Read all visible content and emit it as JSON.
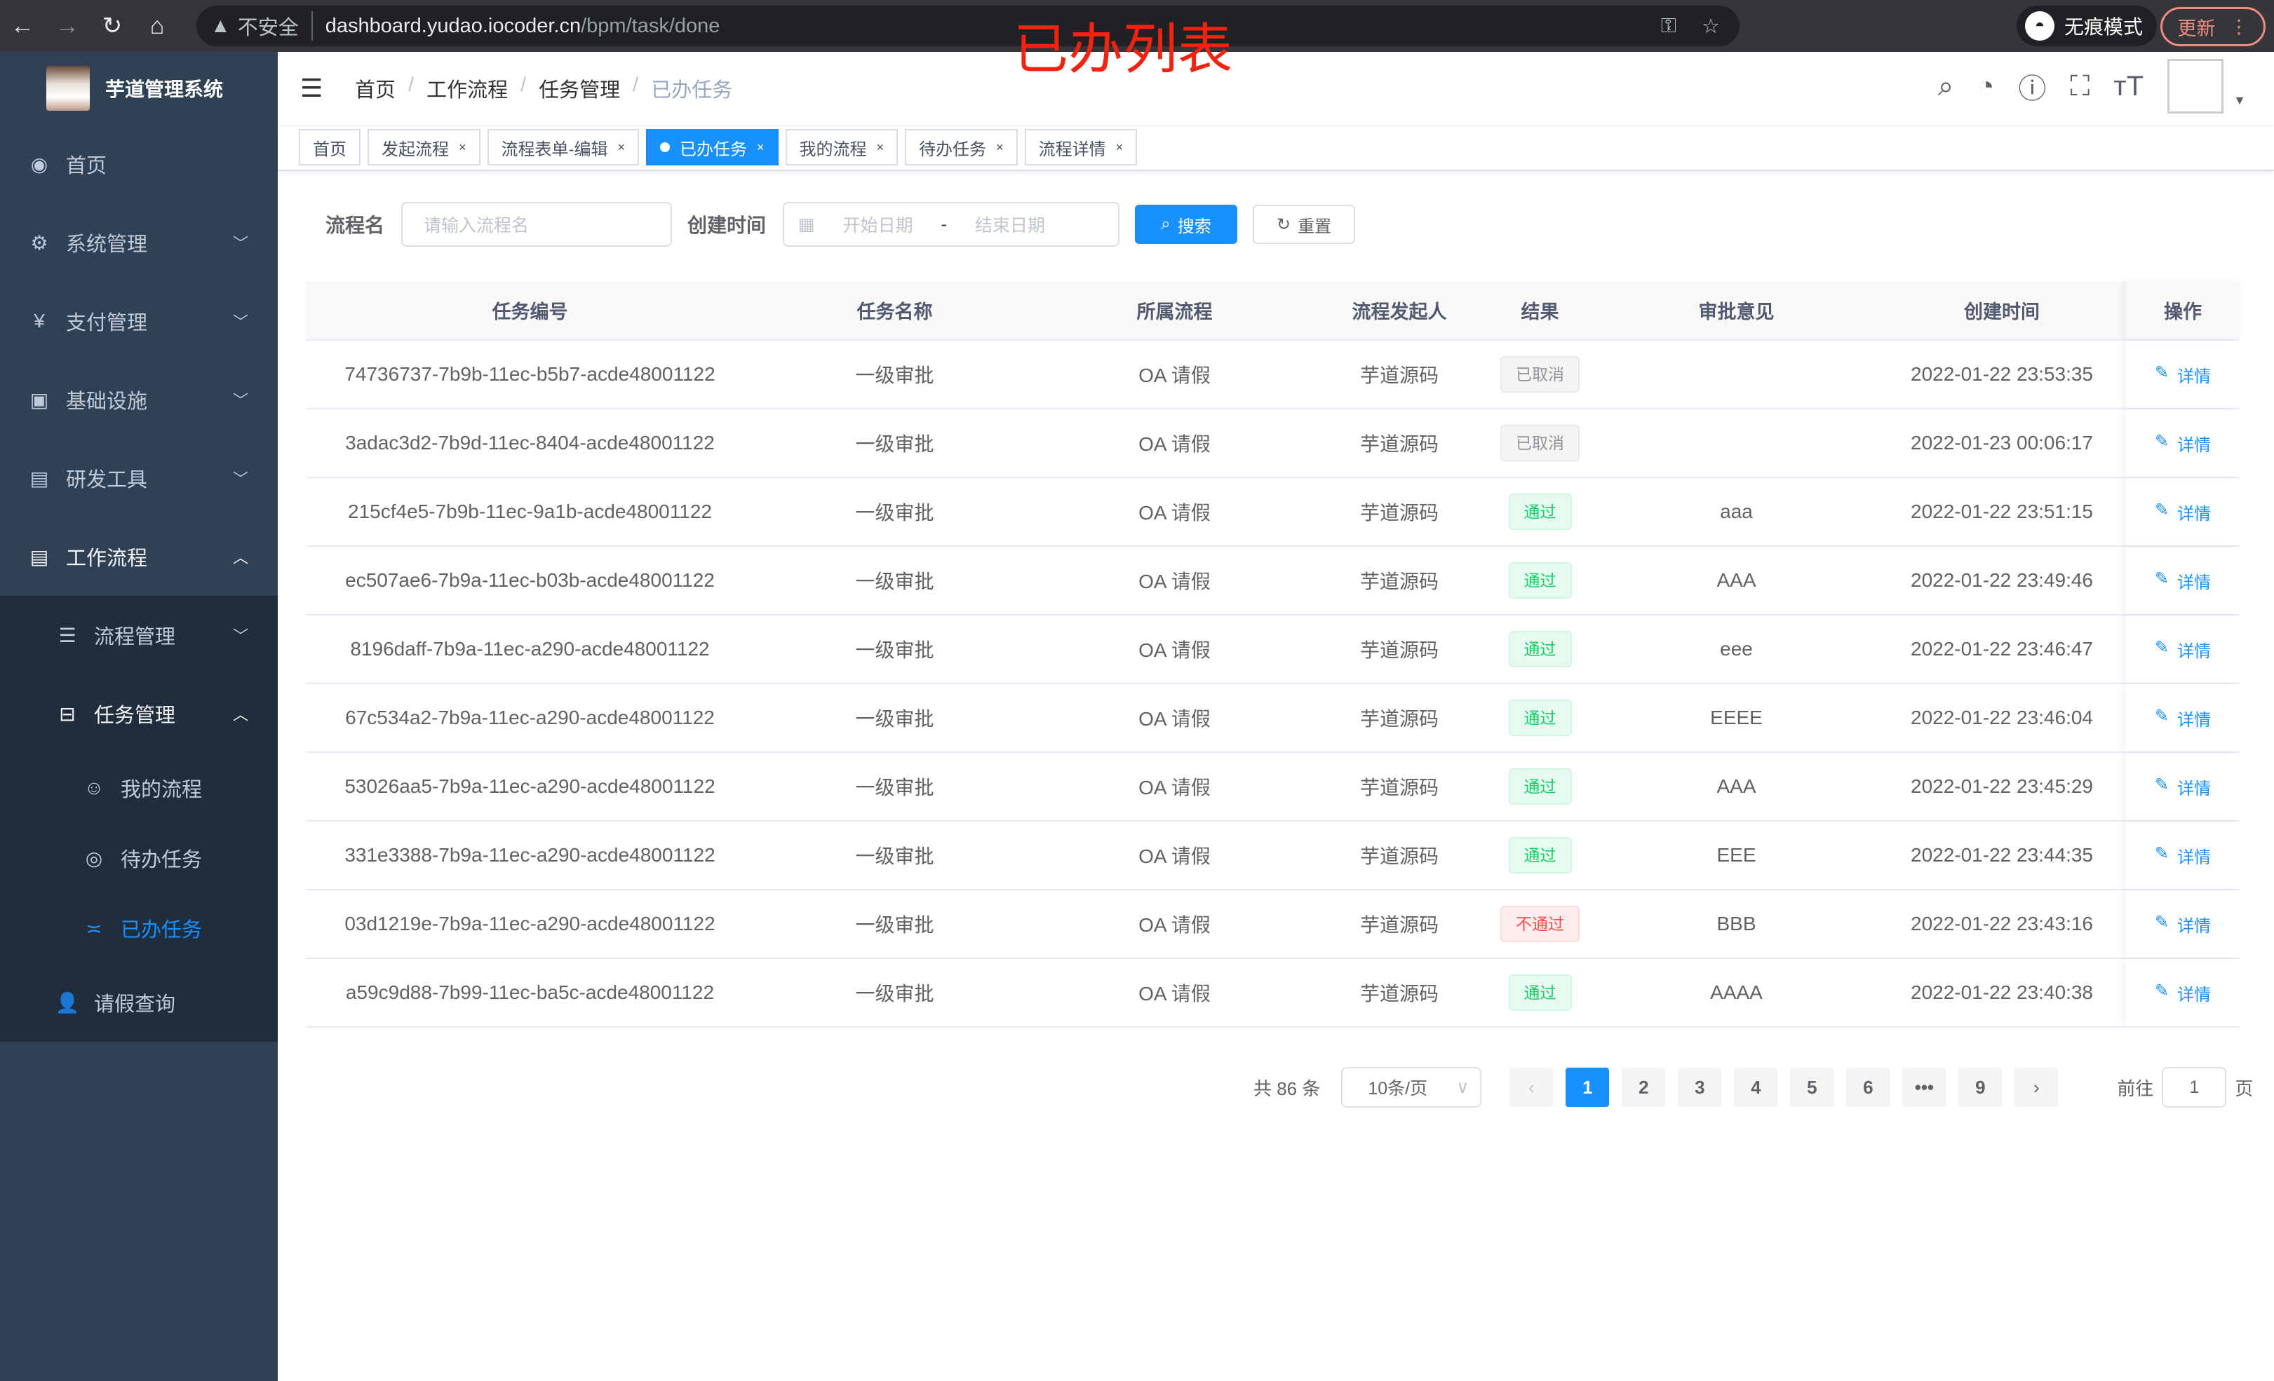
{
  "browser": {
    "url_host": "dashboard.yudao.iocoder.cn",
    "url_path": "/bpm/task/done",
    "insecure": "不安全",
    "incognito": "无痕模式",
    "update": "更新"
  },
  "overlay_title": "已办列表",
  "app": {
    "name": "芋道管理系统"
  },
  "sidebar": {
    "items": [
      {
        "label": "首页",
        "icon": "dashboard-icon"
      },
      {
        "label": "系统管理",
        "icon": "gear-icon"
      },
      {
        "label": "支付管理",
        "icon": "yen-icon"
      },
      {
        "label": "基础设施",
        "icon": "monitor-icon"
      },
      {
        "label": "研发工具",
        "icon": "toolbox-icon"
      },
      {
        "label": "工作流程",
        "icon": "toolbox-icon"
      }
    ],
    "workflow_children": [
      {
        "label": "流程管理"
      },
      {
        "label": "任务管理"
      },
      {
        "label": "请假查询"
      }
    ],
    "task_children": [
      {
        "label": "我的流程"
      },
      {
        "label": "待办任务"
      },
      {
        "label": "已办任务"
      }
    ]
  },
  "breadcrumb": [
    "首页",
    "工作流程",
    "任务管理",
    "已办任务"
  ],
  "tags": [
    {
      "label": "首页"
    },
    {
      "label": "发起流程"
    },
    {
      "label": "流程表单-编辑"
    },
    {
      "label": "已办任务",
      "active": true
    },
    {
      "label": "我的流程"
    },
    {
      "label": "待办任务"
    },
    {
      "label": "流程详情"
    }
  ],
  "filter": {
    "name_label": "流程名",
    "name_placeholder": "请输入流程名",
    "time_label": "创建时间",
    "start_placeholder": "开始日期",
    "sep": "-",
    "end_placeholder": "结束日期",
    "search": "搜索",
    "reset": "重置"
  },
  "table": {
    "headers": [
      "任务编号",
      "任务名称",
      "所属流程",
      "流程发起人",
      "结果",
      "审批意见",
      "创建时间",
      "操作"
    ],
    "rows": [
      {
        "id": "74736737-7b9b-11ec-b5b7-acde48001122",
        "name": "一级审批",
        "flow": "OA 请假",
        "initiator": "芋道源码",
        "result": "已取消",
        "status": "cancel",
        "comment": "",
        "time": "2022-01-22 23:53:35",
        "action": "详情"
      },
      {
        "id": "3adac3d2-7b9d-11ec-8404-acde48001122",
        "name": "一级审批",
        "flow": "OA 请假",
        "initiator": "芋道源码",
        "result": "已取消",
        "status": "cancel",
        "comment": "",
        "time": "2022-01-23 00:06:17",
        "action": "详情"
      },
      {
        "id": "215cf4e5-7b9b-11ec-9a1b-acde48001122",
        "name": "一级审批",
        "flow": "OA 请假",
        "initiator": "芋道源码",
        "result": "通过",
        "status": "pass",
        "comment": "aaa",
        "time": "2022-01-22 23:51:15",
        "action": "详情"
      },
      {
        "id": "ec507ae6-7b9a-11ec-b03b-acde48001122",
        "name": "一级审批",
        "flow": "OA 请假",
        "initiator": "芋道源码",
        "result": "通过",
        "status": "pass",
        "comment": "AAA",
        "time": "2022-01-22 23:49:46",
        "action": "详情"
      },
      {
        "id": "8196daff-7b9a-11ec-a290-acde48001122",
        "name": "一级审批",
        "flow": "OA 请假",
        "initiator": "芋道源码",
        "result": "通过",
        "status": "pass",
        "comment": "eee",
        "time": "2022-01-22 23:46:47",
        "action": "详情"
      },
      {
        "id": "67c534a2-7b9a-11ec-a290-acde48001122",
        "name": "一级审批",
        "flow": "OA 请假",
        "initiator": "芋道源码",
        "result": "通过",
        "status": "pass",
        "comment": "EEEE",
        "time": "2022-01-22 23:46:04",
        "action": "详情"
      },
      {
        "id": "53026aa5-7b9a-11ec-a290-acde48001122",
        "name": "一级审批",
        "flow": "OA 请假",
        "initiator": "芋道源码",
        "result": "通过",
        "status": "pass",
        "comment": "AAA",
        "time": "2022-01-22 23:45:29",
        "action": "详情"
      },
      {
        "id": "331e3388-7b9a-11ec-a290-acde48001122",
        "name": "一级审批",
        "flow": "OA 请假",
        "initiator": "芋道源码",
        "result": "通过",
        "status": "pass",
        "comment": "EEE",
        "time": "2022-01-22 23:44:35",
        "action": "详情"
      },
      {
        "id": "03d1219e-7b9a-11ec-a290-acde48001122",
        "name": "一级审批",
        "flow": "OA 请假",
        "initiator": "芋道源码",
        "result": "不通过",
        "status": "fail",
        "comment": "BBB",
        "time": "2022-01-22 23:43:16",
        "action": "详情"
      },
      {
        "id": "a59c9d88-7b99-11ec-ba5c-acde48001122",
        "name": "一级审批",
        "flow": "OA 请假",
        "initiator": "芋道源码",
        "result": "通过",
        "status": "pass",
        "comment": "AAAA",
        "time": "2022-01-22 23:40:38",
        "action": "详情"
      }
    ]
  },
  "pagination": {
    "total": "共 86 条",
    "page_size": "10条/页",
    "pages": [
      "1",
      "2",
      "3",
      "4",
      "5",
      "6",
      "•••",
      "9"
    ],
    "current": "1",
    "goto_label": "前往",
    "goto_value": "1",
    "goto_suffix": "页"
  },
  "colors": {
    "primary": "#1890ff",
    "sidebar": "#304156",
    "submenu": "#1f2d3d",
    "pass": "#13ce66",
    "fail": "#ff4949",
    "title_red": "#f4230f"
  }
}
